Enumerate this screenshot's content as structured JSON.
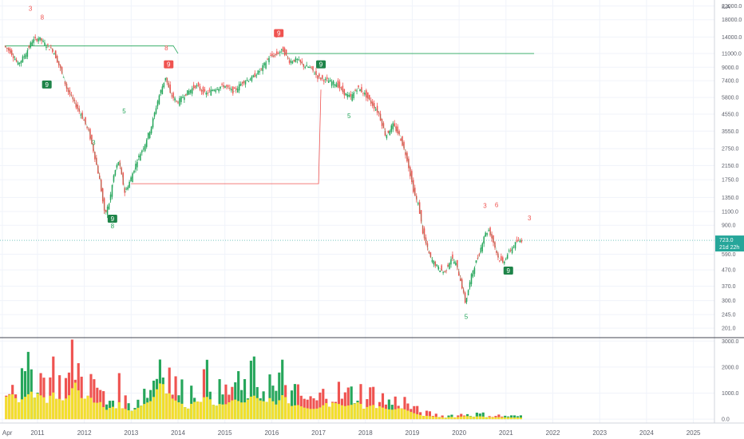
{
  "chart_data": {
    "type": "candlestick",
    "title": "",
    "currency_label": "ILA",
    "colors": {
      "up": "#26a65b",
      "down": "#ef5350",
      "volume_avg": "#f2e02c",
      "price_line": "#26a69a",
      "resistance": "#26a65b",
      "support": "#ef5350"
    },
    "price_axis": {
      "scale": "log",
      "ticks": [
        "22000.0",
        "18000.0",
        "14000.0",
        "11000.0",
        "9000.0",
        "7400.0",
        "5800.0",
        "4550.0",
        "3550.0",
        "2750.0",
        "2150.0",
        "1750.0",
        "1350.0",
        "1100.0",
        "900.0",
        "590.0",
        "470.0",
        "370.0",
        "300.0",
        "245.0",
        "201.0"
      ],
      "tick_values": [
        22000,
        18000,
        14000,
        11000,
        9000,
        7400,
        5800,
        4550,
        3550,
        2750,
        2150,
        1750,
        1350,
        1100,
        900,
        590,
        470,
        370,
        300,
        245,
        201
      ],
      "range": [
        175,
        24000
      ]
    },
    "current_price": {
      "value": 723,
      "label": "723.0",
      "countdown": "21d 22h"
    },
    "volume_axis": {
      "ticks": [
        "3000.0",
        "2000.0",
        "1000.0",
        "0.0"
      ],
      "tick_values": [
        3000,
        2000,
        1000,
        0
      ],
      "range": [
        -150,
        3100
      ]
    },
    "time_axis": {
      "ticks": [
        "Apr",
        "2011",
        "2012",
        "2013",
        "2014",
        "2015",
        "2016",
        "2017",
        "2018",
        "2019",
        "2020",
        "2021",
        "2022",
        "2023",
        "2024",
        "2025"
      ],
      "tick_years": [
        2010.25,
        2011,
        2012,
        2013,
        2014,
        2015,
        2016,
        2017,
        2018,
        2019,
        2020,
        2021,
        2022,
        2023,
        2024,
        2025
      ],
      "range": [
        2010.2,
        2025.45
      ]
    },
    "close_series": [
      [
        2010.3,
        12300
      ],
      [
        2010.45,
        11200
      ],
      [
        2010.6,
        9400
      ],
      [
        2010.75,
        10800
      ],
      [
        2010.9,
        13200
      ],
      [
        2011.05,
        13800
      ],
      [
        2011.2,
        12400
      ],
      [
        2011.35,
        11500
      ],
      [
        2011.5,
        8900
      ],
      [
        2011.65,
        6500
      ],
      [
        2011.8,
        5400
      ],
      [
        2011.95,
        4500
      ],
      [
        2012.1,
        3600
      ],
      [
        2012.22,
        2600
      ],
      [
        2012.35,
        1700
      ],
      [
        2012.45,
        1050
      ],
      [
        2012.55,
        1250
      ],
      [
        2012.65,
        1900
      ],
      [
        2012.75,
        2300
      ],
      [
        2012.88,
        1450
      ],
      [
        2013.0,
        1750
      ],
      [
        2013.15,
        2350
      ],
      [
        2013.3,
        2900
      ],
      [
        2013.45,
        3850
      ],
      [
        2013.6,
        5800
      ],
      [
        2013.75,
        7800
      ],
      [
        2013.85,
        6100
      ],
      [
        2014.0,
        5400
      ],
      [
        2014.2,
        6200
      ],
      [
        2014.4,
        6900
      ],
      [
        2014.6,
        6100
      ],
      [
        2014.8,
        6600
      ],
      [
        2015.0,
        6900
      ],
      [
        2015.2,
        6300
      ],
      [
        2015.4,
        7300
      ],
      [
        2015.6,
        7700
      ],
      [
        2015.8,
        8800
      ],
      [
        2015.95,
        10400
      ],
      [
        2016.1,
        10800
      ],
      [
        2016.25,
        11600
      ],
      [
        2016.4,
        9800
      ],
      [
        2016.55,
        10100
      ],
      [
        2016.7,
        9200
      ],
      [
        2016.85,
        8900
      ],
      [
        2017.0,
        7800
      ],
      [
        2017.2,
        7400
      ],
      [
        2017.4,
        7100
      ],
      [
        2017.55,
        6200
      ],
      [
        2017.7,
        5800
      ],
      [
        2017.85,
        6700
      ],
      [
        2018.0,
        6100
      ],
      [
        2018.15,
        5300
      ],
      [
        2018.3,
        4600
      ],
      [
        2018.45,
        3300
      ],
      [
        2018.6,
        3900
      ],
      [
        2018.75,
        3300
      ],
      [
        2018.9,
        2400
      ],
      [
        2019.05,
        1450
      ],
      [
        2019.15,
        1200
      ],
      [
        2019.25,
        780
      ],
      [
        2019.4,
        560
      ],
      [
        2019.55,
        490
      ],
      [
        2019.7,
        450
      ],
      [
        2019.85,
        560
      ],
      [
        2019.95,
        510
      ],
      [
        2020.05,
        400
      ],
      [
        2020.15,
        290
      ],
      [
        2020.3,
        460
      ],
      [
        2020.45,
        600
      ],
      [
        2020.55,
        780
      ],
      [
        2020.65,
        840
      ],
      [
        2020.75,
        700
      ],
      [
        2020.85,
        560
      ],
      [
        2020.95,
        520
      ],
      [
        2021.05,
        590
      ],
      [
        2021.15,
        650
      ],
      [
        2021.25,
        710
      ],
      [
        2021.35,
        723
      ]
    ],
    "volume_series": [
      [
        2010.3,
        1500
      ],
      [
        2010.45,
        1800
      ],
      [
        2010.6,
        1200
      ],
      [
        2010.75,
        1600
      ],
      [
        2010.9,
        2000
      ],
      [
        2011.05,
        1700
      ],
      [
        2011.2,
        1400
      ],
      [
        2011.35,
        1900
      ],
      [
        2011.5,
        1300
      ],
      [
        2011.65,
        1500
      ],
      [
        2011.8,
        2600
      ],
      [
        2011.95,
        1400
      ],
      [
        2012.1,
        1700
      ],
      [
        2012.22,
        1100
      ],
      [
        2012.35,
        1200
      ],
      [
        2012.45,
        600
      ],
      [
        2012.55,
        800
      ],
      [
        2012.65,
        900
      ],
      [
        2012.75,
        1200
      ],
      [
        2012.88,
        700
      ],
      [
        2013.0,
        550
      ],
      [
        2013.15,
        800
      ],
      [
        2013.3,
        1100
      ],
      [
        2013.45,
        1300
      ],
      [
        2013.6,
        2500
      ],
      [
        2013.75,
        2400
      ],
      [
        2013.85,
        1500
      ],
      [
        2014.0,
        1200
      ],
      [
        2014.2,
        900
      ],
      [
        2014.4,
        1300
      ],
      [
        2014.6,
        1600
      ],
      [
        2014.8,
        1100
      ],
      [
        2015.0,
        1000
      ],
      [
        2015.2,
        1400
      ],
      [
        2015.4,
        1100
      ],
      [
        2015.6,
        1700
      ],
      [
        2015.8,
        1200
      ],
      [
        2015.95,
        1500
      ],
      [
        2016.1,
        1000
      ],
      [
        2016.25,
        1800
      ],
      [
        2016.4,
        900
      ],
      [
        2016.55,
        1000
      ],
      [
        2016.7,
        800
      ],
      [
        2016.85,
        700
      ],
      [
        2017.0,
        750
      ],
      [
        2017.2,
        1200
      ],
      [
        2017.4,
        1100
      ],
      [
        2017.55,
        900
      ],
      [
        2017.7,
        1000
      ],
      [
        2017.85,
        1200
      ],
      [
        2018.0,
        800
      ],
      [
        2018.15,
        1000
      ],
      [
        2018.3,
        900
      ],
      [
        2018.45,
        700
      ],
      [
        2018.6,
        650
      ],
      [
        2018.75,
        800
      ],
      [
        2018.9,
        600
      ],
      [
        2019.05,
        400
      ],
      [
        2019.15,
        300
      ],
      [
        2019.25,
        250
      ],
      [
        2019.4,
        200
      ],
      [
        2019.55,
        150
      ],
      [
        2019.7,
        120
      ],
      [
        2019.85,
        160
      ],
      [
        2019.95,
        140
      ],
      [
        2020.05,
        180
      ],
      [
        2020.15,
        220
      ],
      [
        2020.3,
        180
      ],
      [
        2020.45,
        200
      ],
      [
        2020.55,
        170
      ],
      [
        2020.65,
        150
      ],
      [
        2020.75,
        130
      ],
      [
        2020.85,
        140
      ],
      [
        2020.95,
        120
      ],
      [
        2021.05,
        130
      ],
      [
        2021.15,
        110
      ],
      [
        2021.25,
        120
      ],
      [
        2021.35,
        100
      ]
    ],
    "setup_markers": [
      {
        "label": "9",
        "year": 2011.2,
        "price": 7000,
        "type": "buy"
      },
      {
        "label": "9",
        "year": 2012.6,
        "price": 990,
        "type": "buy"
      },
      {
        "label": "9",
        "year": 2013.8,
        "price": 9400,
        "type": "sell"
      },
      {
        "label": "9",
        "year": 2016.15,
        "price": 14800,
        "type": "sell"
      },
      {
        "label": "9",
        "year": 2017.05,
        "price": 9400,
        "type": "buy"
      },
      {
        "label": "9",
        "year": 2021.05,
        "price": 465,
        "type": "buy"
      }
    ],
    "sequence_labels": [
      {
        "text": "3",
        "year": 2010.85,
        "price": 20500,
        "color": "red"
      },
      {
        "text": "8",
        "year": 2011.1,
        "price": 18000,
        "color": "red"
      },
      {
        "text": "8",
        "year": 2013.75,
        "price": 11500,
        "color": "red"
      },
      {
        "text": "6",
        "year": 2016.1,
        "price": 13900,
        "color": "red"
      },
      {
        "text": "5",
        "year": 2012.85,
        "price": 4600,
        "color": "green"
      },
      {
        "text": "3",
        "year": 2012.2,
        "price": 2900,
        "color": "green"
      },
      {
        "text": "8",
        "year": 2012.6,
        "price": 860,
        "color": "green"
      },
      {
        "text": "5",
        "year": 2017.65,
        "price": 4300,
        "color": "green"
      },
      {
        "text": "5",
        "year": 2020.15,
        "price": 230,
        "color": "green"
      },
      {
        "text": "3",
        "year": 2020.55,
        "price": 1160,
        "color": "red"
      },
      {
        "text": "6",
        "year": 2020.8,
        "price": 1170,
        "color": "red"
      },
      {
        "text": "3",
        "year": 2021.5,
        "price": 970,
        "color": "red"
      }
    ]
  }
}
